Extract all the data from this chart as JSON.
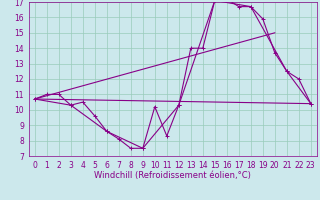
{
  "xlabel": "Windchill (Refroidissement éolien,°C)",
  "background_color": "#cce8ec",
  "grid_color": "#99ccbb",
  "line_color": "#880088",
  "xlim": [
    -0.5,
    23.5
  ],
  "ylim": [
    7,
    17
  ],
  "xticks": [
    0,
    1,
    2,
    3,
    4,
    5,
    6,
    7,
    8,
    9,
    10,
    11,
    12,
    13,
    14,
    15,
    16,
    17,
    18,
    19,
    20,
    21,
    22,
    23
  ],
  "yticks": [
    7,
    8,
    9,
    10,
    11,
    12,
    13,
    14,
    15,
    16,
    17
  ],
  "series1_x": [
    0,
    1,
    2,
    3,
    4,
    5,
    6,
    7,
    8,
    9,
    10,
    11,
    12,
    13,
    14,
    15,
    16,
    17,
    18,
    19,
    20,
    21,
    22,
    23
  ],
  "series1_y": [
    10.7,
    11.0,
    11.0,
    10.3,
    10.5,
    9.6,
    8.6,
    8.1,
    7.5,
    7.5,
    10.2,
    8.3,
    10.3,
    14.0,
    14.0,
    17.1,
    17.2,
    16.7,
    16.7,
    15.9,
    13.7,
    12.5,
    12.0,
    10.4
  ],
  "series2_x": [
    0,
    3,
    6,
    9,
    12,
    15,
    18,
    21,
    23
  ],
  "series2_y": [
    10.7,
    10.3,
    8.6,
    7.5,
    10.3,
    17.1,
    16.7,
    12.5,
    10.4
  ],
  "series3_x": [
    0,
    23
  ],
  "series3_y": [
    10.7,
    10.4
  ],
  "series4_x": [
    0,
    20
  ],
  "series4_y": [
    10.7,
    15.0
  ],
  "tick_fontsize": 5.5,
  "label_fontsize": 6.0
}
